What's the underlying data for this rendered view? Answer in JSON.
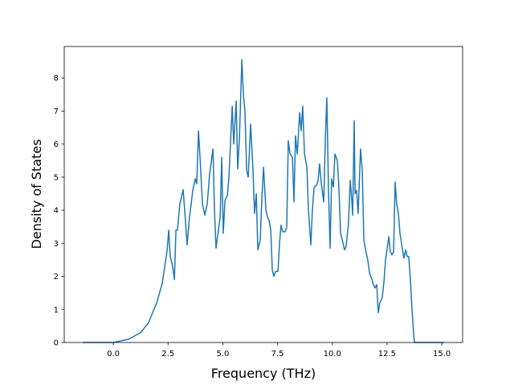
{
  "chart_data": {
    "type": "line",
    "x_label": "Frequency (THz)",
    "y_label": "Density of States",
    "x": [
      -1.39,
      0,
      0.7,
      1.25,
      1.61,
      1.98,
      2.24,
      2.35,
      2.46,
      2.53,
      2.6,
      2.71,
      2.79,
      2.86,
      2.93,
      3.04,
      3.19,
      3.26,
      3.37,
      3.48,
      3.63,
      3.74,
      3.81,
      3.89,
      3.96,
      4.07,
      4.18,
      4.29,
      4.4,
      4.55,
      4.62,
      4.69,
      4.8,
      4.88,
      4.95,
      5.02,
      5.1,
      5.21,
      5.28,
      5.35,
      5.43,
      5.5,
      5.61,
      5.68,
      5.76,
      5.87,
      5.94,
      6.01,
      6.09,
      6.16,
      6.27,
      6.38,
      6.45,
      6.53,
      6.6,
      6.71,
      6.78,
      6.86,
      6.97,
      7.04,
      7.11,
      7.19,
      7.26,
      7.33,
      7.41,
      7.52,
      7.59,
      7.66,
      7.74,
      7.85,
      7.92,
      7.99,
      8.07,
      8.18,
      8.25,
      8.32,
      8.4,
      8.51,
      8.58,
      8.65,
      8.73,
      8.84,
      8.91,
      9.02,
      9.09,
      9.17,
      9.28,
      9.35,
      9.42,
      9.5,
      9.61,
      9.68,
      9.75,
      9.83,
      9.9,
      9.97,
      10.05,
      10.12,
      10.23,
      10.3,
      10.38,
      10.49,
      10.56,
      10.63,
      10.74,
      10.82,
      10.89,
      10.93,
      11.0,
      11.04,
      11.11,
      11.18,
      11.29,
      11.37,
      11.44,
      11.55,
      11.62,
      11.7,
      11.81,
      11.88,
      11.95,
      12.03,
      12.1,
      12.17,
      12.28,
      12.36,
      12.43,
      12.58,
      12.65,
      12.72,
      12.8,
      12.87,
      12.94,
      13.02,
      13.09,
      13.16,
      13.27,
      13.35,
      13.42,
      13.49,
      13.57,
      13.64,
      13.71,
      13.75,
      15.11
    ],
    "series": [
      {
        "color": "#1f77b4",
        "values": [
          0,
          0,
          0.1,
          0.3,
          0.6,
          1.2,
          1.8,
          2.3,
          2.8,
          3.4,
          2.6,
          2.3,
          1.9,
          3.4,
          3.4,
          4.2,
          4.62,
          4.0,
          2.95,
          3.8,
          4.6,
          4.95,
          4.8,
          6.4,
          5.6,
          4.2,
          3.85,
          4.2,
          5.1,
          5.85,
          4.0,
          2.85,
          3.4,
          3.8,
          5.6,
          3.3,
          4.3,
          4.45,
          5.0,
          6.0,
          7.15,
          6.0,
          7.3,
          5.25,
          6.2,
          8.55,
          7.5,
          7.0,
          5.2,
          5.0,
          6.6,
          5.2,
          3.9,
          4.5,
          2.8,
          3.1,
          4.3,
          5.3,
          4.0,
          3.8,
          3.7,
          3.4,
          2.2,
          2.0,
          2.15,
          2.15,
          3.0,
          3.55,
          3.35,
          3.35,
          3.5,
          6.1,
          5.7,
          5.6,
          4.25,
          6.25,
          5.7,
          6.95,
          6.4,
          7.15,
          5.7,
          5.3,
          4.0,
          2.95,
          4.0,
          4.7,
          4.75,
          4.9,
          5.4,
          4.8,
          4.25,
          6.1,
          7.4,
          4.5,
          2.85,
          4.95,
          4.7,
          5.7,
          5.5,
          4.7,
          3.3,
          3.0,
          2.8,
          2.9,
          3.6,
          4.9,
          4.3,
          3.85,
          6.7,
          4.5,
          4.6,
          3.9,
          5.85,
          5.2,
          3.1,
          2.7,
          2.5,
          2.1,
          1.9,
          1.75,
          1.65,
          1.75,
          0.9,
          1.2,
          1.35,
          1.85,
          2.5,
          3.2,
          2.75,
          2.65,
          2.75,
          4.85,
          4.2,
          3.9,
          3.3,
          3.0,
          2.55,
          2.8,
          2.6,
          2.6,
          1.85,
          1.0,
          0.3,
          0,
          0
        ]
      }
    ],
    "xlim": [
      -2.24,
      15.95
    ],
    "ylim": [
      0,
      8.95
    ],
    "xticks": [
      {
        "value": 0,
        "label": "0.0"
      },
      {
        "value": 2.5,
        "label": "2.5"
      },
      {
        "value": 5,
        "label": "5.0"
      },
      {
        "value": 7.5,
        "label": "7.5"
      },
      {
        "value": 10,
        "label": "10.0"
      },
      {
        "value": 12.5,
        "label": "12.5"
      },
      {
        "value": 15,
        "label": "15.0"
      }
    ],
    "yticks": [
      0,
      1,
      2,
      3,
      4,
      5,
      6,
      7,
      8
    ]
  }
}
